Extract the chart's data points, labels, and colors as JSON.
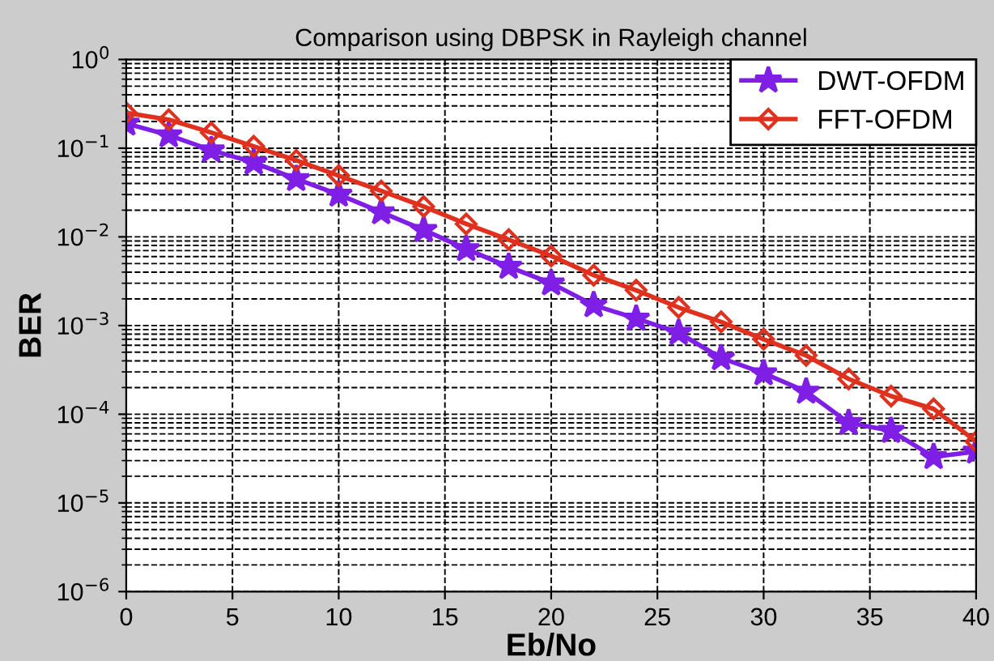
{
  "chart_data": {
    "type": "line",
    "title": "Comparison using DBPSK in Rayleigh channel",
    "xlabel": "Eb/No",
    "ylabel": "BER",
    "x": [
      0,
      2,
      4,
      6,
      8,
      10,
      12,
      14,
      16,
      18,
      20,
      22,
      24,
      26,
      28,
      30,
      32,
      34,
      36,
      38,
      40
    ],
    "series": [
      {
        "name": "DWT-OFDM",
        "color": "#7f1fe6",
        "marker": "star",
        "values": [
          0.19,
          0.14,
          0.095,
          0.069,
          0.045,
          0.03,
          0.019,
          0.012,
          0.0073,
          0.0046,
          0.003,
          0.0017,
          0.0012,
          0.00083,
          0.00043,
          0.00029,
          0.00018,
          8e-05,
          6.5e-05,
          3.3e-05,
          3.8e-05
        ]
      },
      {
        "name": "FFT-OFDM",
        "color": "#e0301e",
        "marker": "diamond",
        "values": [
          0.25,
          0.21,
          0.15,
          0.105,
          0.073,
          0.049,
          0.033,
          0.022,
          0.014,
          0.0093,
          0.0061,
          0.0037,
          0.0025,
          0.0016,
          0.0011,
          0.0007,
          0.00046,
          0.00025,
          0.00016,
          0.000115,
          4.9e-05
        ]
      }
    ],
    "log": "y",
    "xlim": [
      0,
      40
    ],
    "xticks": [
      0,
      5,
      10,
      15,
      20,
      25,
      30,
      35,
      40
    ],
    "ylim": [
      1e-06,
      1
    ],
    "yticks": [
      {
        "value": 1e-06,
        "label": "10$^{−6}$"
      },
      {
        "value": 1e-05,
        "label": "10$^{−5}$"
      },
      {
        "value": 0.0001,
        "label": "10$^{−4}$"
      },
      {
        "value": 0.001,
        "label": "10$^{−3}$"
      },
      {
        "value": 0.01,
        "label": "10$^{−2}$"
      },
      {
        "value": 0.1,
        "label": "10$^{−1}$"
      },
      {
        "value": 1,
        "label": "10$^{0}$"
      }
    ],
    "grid": true,
    "legend": "top right",
    "line_style": "solid"
  }
}
